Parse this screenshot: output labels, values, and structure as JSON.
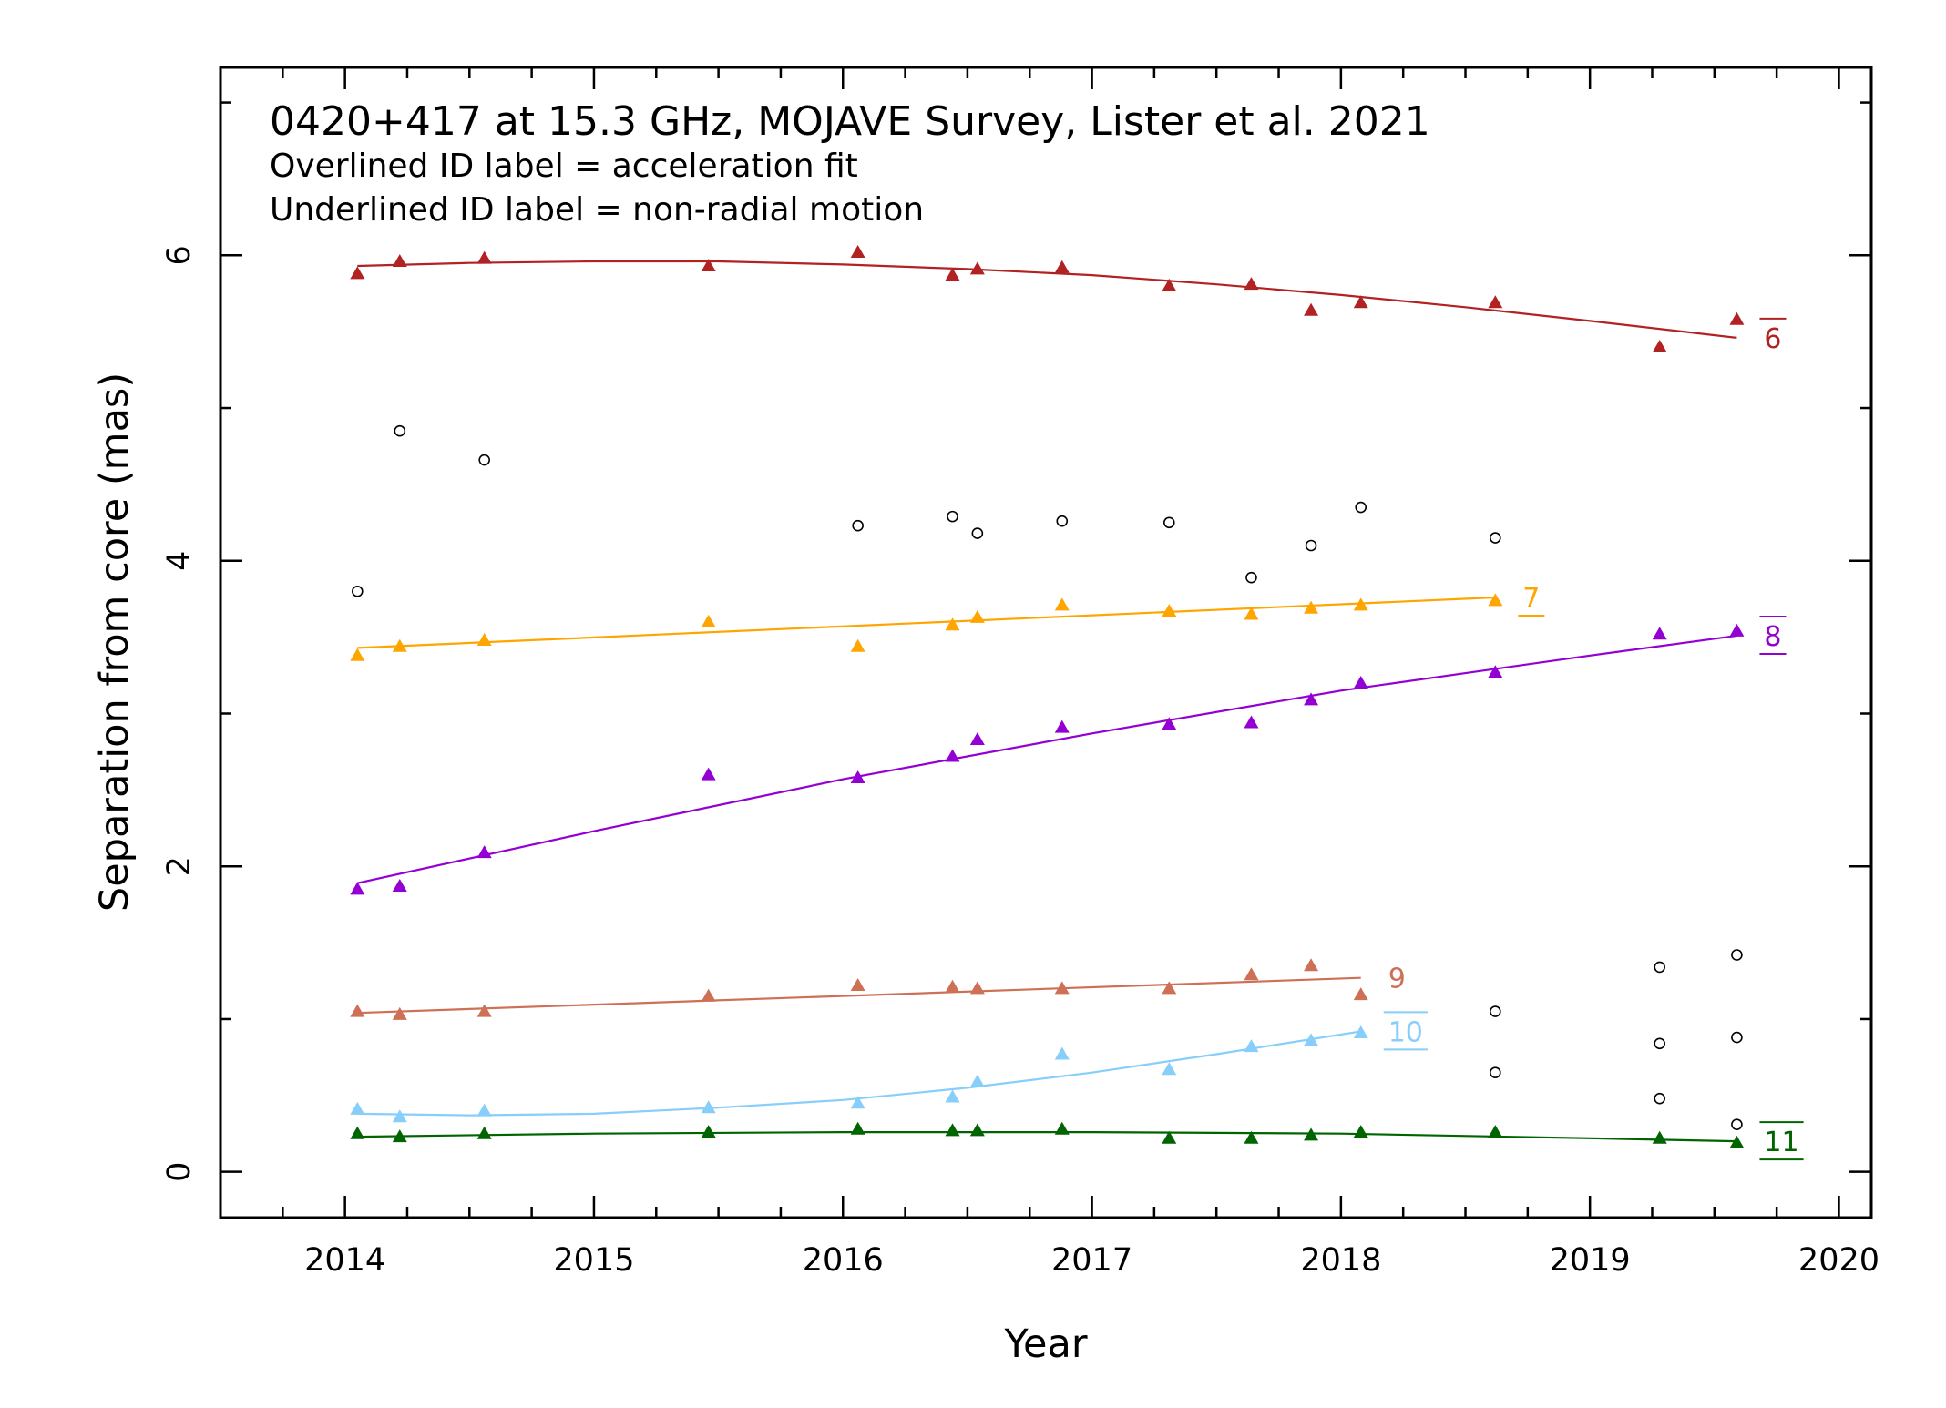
{
  "chart_data": {
    "type": "scatter",
    "title": "0420+417 at 15.3 GHz, MOJAVE Survey, Lister et al. 2021",
    "notes": [
      "Overlined ID label = acceleration fit",
      "Underlined ID label = non-radial motion"
    ],
    "xlabel": "Year",
    "ylabel": "Separation from core (mas)",
    "xlim": [
      2013.5,
      2020.13
    ],
    "ylim": [
      -0.3,
      7.23
    ],
    "x_ticks": [
      2014,
      2015,
      2016,
      2017,
      2018,
      2019,
      2020
    ],
    "x_tick_labels": [
      "2014",
      "2015",
      "2016",
      "2017",
      "2018",
      "2019",
      "2020"
    ],
    "y_ticks": [
      0,
      2,
      4,
      6
    ],
    "y_tick_labels": [
      "0",
      "2",
      "4",
      "6"
    ],
    "grid": false,
    "unassociated_points": {
      "marker": "circle",
      "color": "#000000",
      "points": [
        [
          2014.05,
          3.8
        ],
        [
          2014.22,
          4.85
        ],
        [
          2014.56,
          4.66
        ],
        [
          2016.06,
          4.23
        ],
        [
          2016.44,
          4.29
        ],
        [
          2016.54,
          4.18
        ],
        [
          2016.88,
          4.26
        ],
        [
          2017.31,
          4.25
        ],
        [
          2017.64,
          3.89
        ],
        [
          2017.88,
          4.1
        ],
        [
          2018.08,
          4.35
        ],
        [
          2018.62,
          4.15
        ],
        [
          2018.62,
          1.05
        ],
        [
          2018.62,
          0.65
        ],
        [
          2019.28,
          1.34
        ],
        [
          2019.28,
          0.84
        ],
        [
          2019.28,
          0.48
        ],
        [
          2019.59,
          1.42
        ],
        [
          2019.59,
          0.88
        ],
        [
          2019.59,
          0.31
        ]
      ]
    },
    "series": [
      {
        "name": "6",
        "color": "#b22222",
        "label_decoration": "overline",
        "marker": "triangle",
        "x": [
          2014.05,
          2014.22,
          2014.56,
          2015.46,
          2016.06,
          2016.44,
          2016.54,
          2016.88,
          2017.31,
          2017.64,
          2017.88,
          2018.08,
          2018.62,
          2019.28,
          2019.59
        ],
        "y": [
          5.88,
          5.96,
          5.98,
          5.93,
          6.02,
          5.87,
          5.91,
          5.92,
          5.8,
          5.81,
          5.64,
          5.69,
          5.69,
          5.4,
          5.58
        ],
        "fit_x": [
          2014.05,
          2014.5,
          2015.0,
          2015.5,
          2016.0,
          2016.5,
          2017.0,
          2017.5,
          2018.0,
          2018.5,
          2019.0,
          2019.59
        ],
        "fit_y": [
          5.93,
          5.95,
          5.96,
          5.96,
          5.94,
          5.91,
          5.87,
          5.81,
          5.74,
          5.66,
          5.57,
          5.46
        ]
      },
      {
        "name": "7",
        "color": "#ffa500",
        "label_decoration": "underline",
        "marker": "triangle",
        "x": [
          2014.05,
          2014.22,
          2014.56,
          2015.46,
          2016.06,
          2016.44,
          2016.54,
          2016.88,
          2017.31,
          2017.64,
          2017.88,
          2018.08,
          2018.62
        ],
        "y": [
          3.38,
          3.44,
          3.48,
          3.6,
          3.44,
          3.58,
          3.63,
          3.71,
          3.67,
          3.65,
          3.69,
          3.71,
          3.74
        ],
        "fit_x": [
          2014.05,
          2018.62
        ],
        "fit_y": [
          3.43,
          3.76
        ]
      },
      {
        "name": "8",
        "color": "#9400d3",
        "label_decoration": "overline-underline",
        "marker": "triangle",
        "x": [
          2014.05,
          2014.22,
          2014.56,
          2015.46,
          2016.06,
          2016.44,
          2016.54,
          2016.88,
          2017.31,
          2017.64,
          2017.88,
          2018.08,
          2018.62,
          2019.28,
          2019.59
        ],
        "y": [
          1.85,
          1.87,
          2.09,
          2.6,
          2.58,
          2.72,
          2.83,
          2.91,
          2.93,
          2.94,
          3.09,
          3.2,
          3.27,
          3.52,
          3.54
        ],
        "fit_x": [
          2014.05,
          2015.0,
          2016.0,
          2017.0,
          2018.0,
          2019.0,
          2019.59
        ],
        "fit_y": [
          1.89,
          2.23,
          2.57,
          2.87,
          3.15,
          3.38,
          3.51
        ]
      },
      {
        "name": "9",
        "color": "#cd7055",
        "label_decoration": "none",
        "marker": "triangle",
        "x": [
          2014.05,
          2014.22,
          2014.56,
          2015.46,
          2016.06,
          2016.44,
          2016.54,
          2016.88,
          2017.31,
          2017.64,
          2017.88,
          2018.08
        ],
        "y": [
          1.05,
          1.03,
          1.05,
          1.15,
          1.22,
          1.21,
          1.2,
          1.2,
          1.2,
          1.29,
          1.35,
          1.16
        ],
        "fit_x": [
          2014.05,
          2018.08
        ],
        "fit_y": [
          1.04,
          1.27
        ]
      },
      {
        "name": "10",
        "color": "#87cefa",
        "label_decoration": "overline-underline",
        "marker": "triangle",
        "x": [
          2014.05,
          2014.22,
          2014.56,
          2015.46,
          2016.06,
          2016.44,
          2016.54,
          2016.88,
          2017.31,
          2017.64,
          2017.88,
          2018.08
        ],
        "y": [
          0.41,
          0.36,
          0.4,
          0.42,
          0.45,
          0.49,
          0.59,
          0.77,
          0.67,
          0.82,
          0.86,
          0.91
        ],
        "fit_x": [
          2014.05,
          2014.5,
          2015.0,
          2015.5,
          2016.0,
          2016.5,
          2017.0,
          2017.5,
          2018.08
        ],
        "fit_y": [
          0.38,
          0.37,
          0.38,
          0.42,
          0.47,
          0.55,
          0.65,
          0.77,
          0.92
        ]
      },
      {
        "name": "11",
        "color": "#006400",
        "label_decoration": "overline-underline",
        "marker": "triangle",
        "x": [
          2014.05,
          2014.22,
          2014.56,
          2015.46,
          2016.06,
          2016.44,
          2016.54,
          2016.88,
          2017.31,
          2017.64,
          2017.88,
          2018.08,
          2018.62,
          2019.28,
          2019.59
        ],
        "y": [
          0.25,
          0.23,
          0.25,
          0.26,
          0.28,
          0.27,
          0.27,
          0.28,
          0.22,
          0.22,
          0.24,
          0.26,
          0.26,
          0.22,
          0.19
        ],
        "fit_x": [
          2014.05,
          2015.0,
          2016.0,
          2017.0,
          2018.0,
          2019.0,
          2019.59
        ],
        "fit_y": [
          0.23,
          0.25,
          0.26,
          0.26,
          0.25,
          0.22,
          0.2
        ]
      }
    ]
  }
}
